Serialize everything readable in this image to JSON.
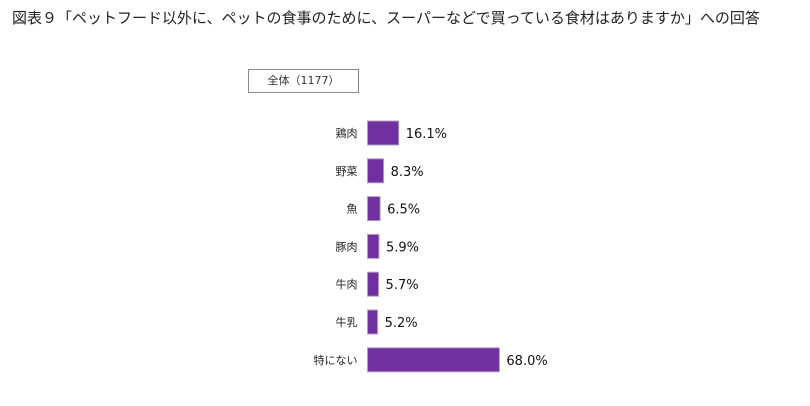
{
  "title": "図表９「ペットフード以外に、ペットの食事のために、スーパーなどで買っている食材はありますか」への回答",
  "chart_data": {
    "type": "bar",
    "orientation": "horizontal",
    "title": "図表９「ペットフード以外に、ペットの食事のために、スーパーなどで買っている食材はありますか」への回答",
    "legend": "全体（1177）",
    "categories": [
      "鶏肉",
      "野菜",
      "魚",
      "豚肉",
      "牛肉",
      "牛乳",
      "特にない"
    ],
    "values": [
      16.1,
      8.3,
      6.5,
      5.9,
      5.7,
      5.2,
      68.0
    ],
    "value_labels": [
      "16.1%",
      "8.3%",
      "6.5%",
      "5.9%",
      "5.7%",
      "5.2%",
      "68.0%"
    ],
    "unit": "%",
    "xlim": [
      0,
      100
    ],
    "grid": false,
    "bar_color": "#7030a0"
  }
}
